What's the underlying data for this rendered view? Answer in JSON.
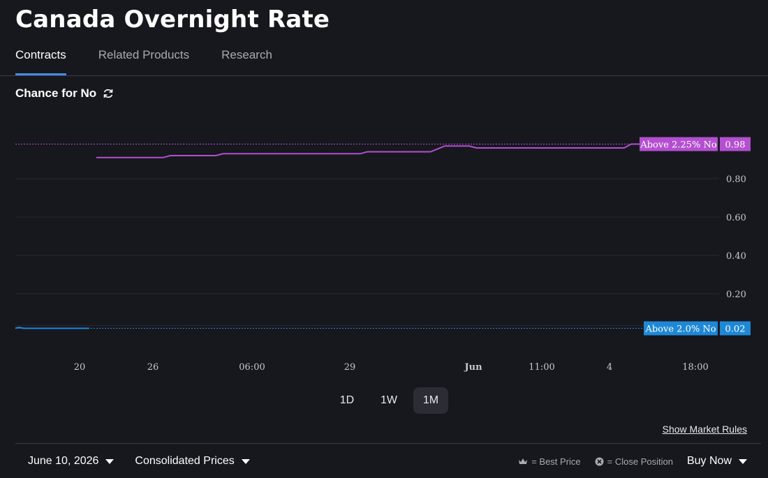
{
  "page": {
    "title": "Canada Overnight Rate"
  },
  "tabs": [
    {
      "label": "Contracts",
      "active": true
    },
    {
      "label": "Related Products",
      "active": false
    },
    {
      "label": "Research",
      "active": false
    }
  ],
  "chart_header": {
    "label": "Chance for No",
    "icon": "refresh-icon"
  },
  "chart_data": {
    "type": "line",
    "title": "Chance for No",
    "x_tick_labels": [
      "20",
      "26",
      "06:00",
      "29",
      "Jun",
      "11:00",
      "4",
      "18:00"
    ],
    "y_ticks": [
      0.2,
      0.4,
      0.6,
      0.8
    ],
    "ylim": [
      0,
      1
    ],
    "grid": true,
    "series": [
      {
        "name": "Above 2.25% No",
        "color": "#b44fd0",
        "last_value": "0.98",
        "points": [
          [
            0.115,
            0.91
          ],
          [
            0.21,
            0.91
          ],
          [
            0.22,
            0.92
          ],
          [
            0.285,
            0.92
          ],
          [
            0.295,
            0.93
          ],
          [
            0.49,
            0.93
          ],
          [
            0.5,
            0.94
          ],
          [
            0.59,
            0.94
          ],
          [
            0.61,
            0.97
          ],
          [
            0.645,
            0.97
          ],
          [
            0.655,
            0.96
          ],
          [
            0.865,
            0.96
          ],
          [
            0.875,
            0.98
          ],
          [
            0.915,
            0.98
          ]
        ]
      },
      {
        "name": "Above 2.0% No",
        "color": "#1e88d6",
        "last_value": "0.02",
        "points": [
          [
            0.0,
            0.02
          ],
          [
            0.005,
            0.025
          ],
          [
            0.012,
            0.02
          ],
          [
            0.105,
            0.02
          ]
        ]
      }
    ]
  },
  "time_range": {
    "options": [
      "1D",
      "1W",
      "1M"
    ],
    "selected": "1M"
  },
  "links": {
    "market_rules": "Show Market Rules"
  },
  "footer": {
    "date": "June 10, 2026",
    "price_mode": "Consolidated Prices",
    "legend_best_price": "= Best Price",
    "legend_close_position": "= Close Position",
    "buy_now": "Buy Now"
  },
  "colors": {
    "background": "#17171e",
    "tab_underline": "#3f8ee8",
    "series_purple": "#b44fd0",
    "series_blue": "#1e88d6"
  }
}
